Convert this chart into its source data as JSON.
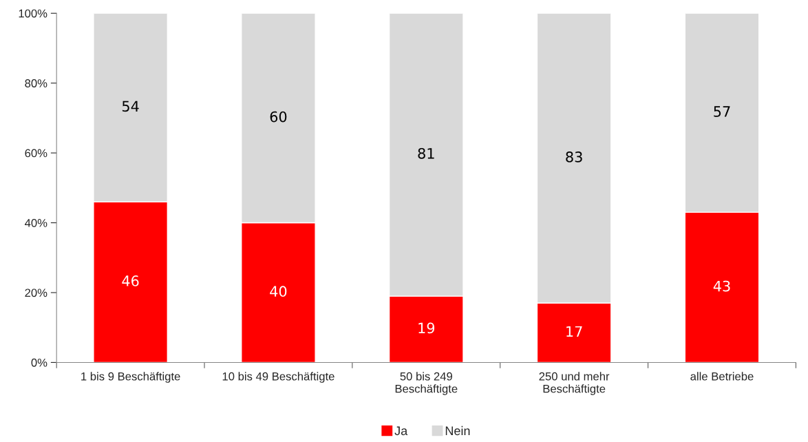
{
  "chart_data": {
    "type": "bar",
    "stacked": true,
    "categories": [
      "1 bis 9 Beschäftigte",
      "10 bis 49 Beschäftigte",
      "50 bis 249\nBeschäftigte",
      "250 und mehr\nBeschäftigte",
      "alle Betriebe"
    ],
    "series": [
      {
        "name": "Ja",
        "color": "#ff0000",
        "values": [
          46,
          40,
          19,
          17,
          43
        ]
      },
      {
        "name": "Nein",
        "color": "#d9d9d9",
        "values": [
          54,
          60,
          81,
          83,
          57
        ]
      }
    ],
    "ylim": [
      0,
      100
    ],
    "yticks": [
      {
        "value": 0,
        "label": "0%"
      },
      {
        "value": 20,
        "label": "20%"
      },
      {
        "value": 40,
        "label": "40%"
      },
      {
        "value": 60,
        "label": "60%"
      },
      {
        "value": 80,
        "label": "80%"
      },
      {
        "value": 100,
        "label": "100%"
      }
    ],
    "data_labels": true,
    "grid": false,
    "legend": "bottom"
  }
}
